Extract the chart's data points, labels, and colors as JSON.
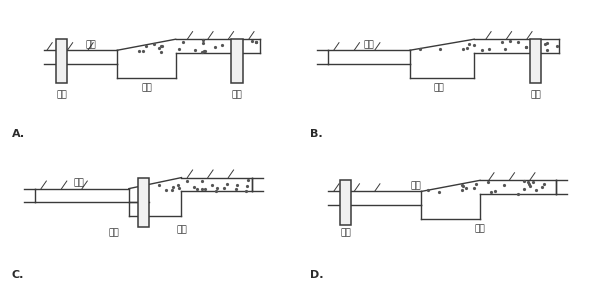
{
  "background_color": "#ffffff",
  "line_color": "#3a3a3a",
  "label_color": "#2a2a2a",
  "panel_labels": [
    "A.",
    "B.",
    "C.",
    "D."
  ],
  "chinese_labels": {
    "pukai": "铺盖",
    "diban": "底板",
    "banzhuang": "板桩"
  },
  "dot_color": "#555555",
  "pile_fill": "#f0f0f0"
}
